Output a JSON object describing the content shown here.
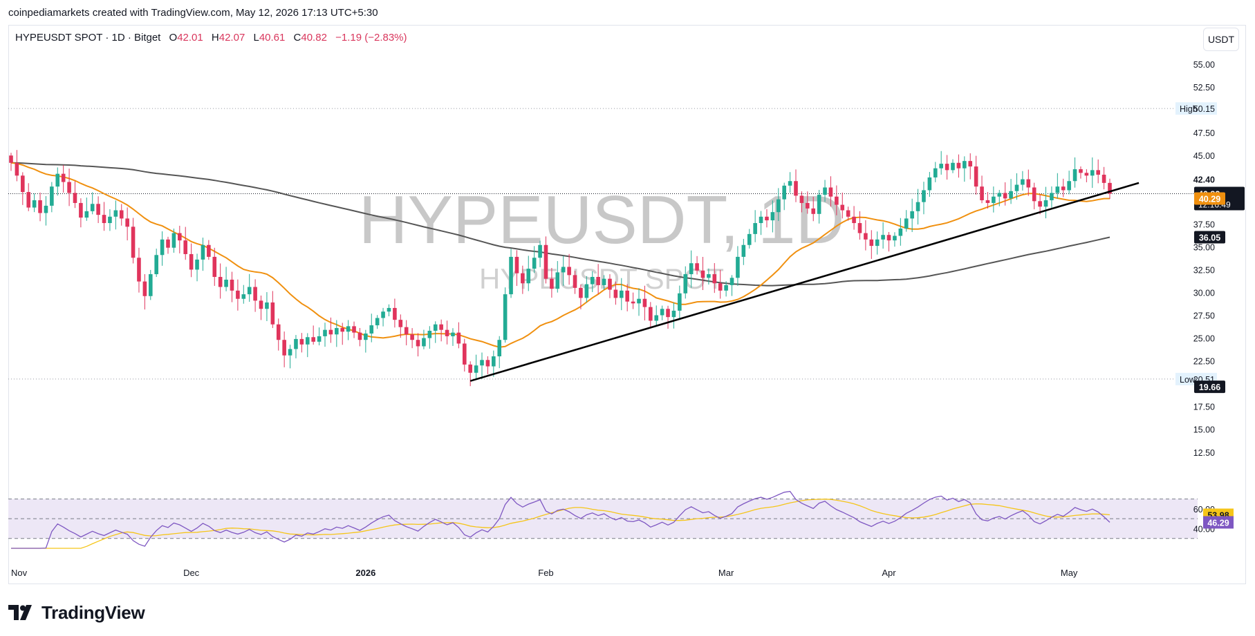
{
  "attribution": "coinpediamarkets created with TradingView.com, May 12, 2026 17:13 UTC+5:30",
  "legend": {
    "symbol": "HYPEUSDT SPOT · 1D · Bitget",
    "open_label": "O",
    "open": "42.01",
    "high_label": "H",
    "high": "42.07",
    "low_label": "L",
    "low": "40.61",
    "close_label": "C",
    "close": "40.82",
    "change": "−1.19 (−2.83%)"
  },
  "currency": "USDT",
  "watermark": {
    "main": "HYPEUSDT, 1D",
    "sub": "HYPEUSDT SPOT"
  },
  "branding": {
    "logo_text": "TradingView"
  },
  "colors": {
    "up": "#22ab94",
    "down": "#e0345c",
    "ma_fast": "#f0900f",
    "ma_slow": "#555555",
    "trendline": "#000000",
    "rsi": "#7e57c2",
    "rsi_ma": "#f5c518",
    "rsi_band": "#ede7f6"
  },
  "chart_data": [
    {
      "type": "candlestick",
      "y_axis": {
        "ticks": [
          55.0,
          52.5,
          47.5,
          45.0,
          37.5,
          35.0,
          32.5,
          30.0,
          27.5,
          25.0,
          22.5,
          17.5,
          15.0,
          12.5
        ],
        "ylim": [
          11.5,
          57.5
        ]
      },
      "x_axis": {
        "labels": [
          "Nov",
          "Dec",
          "2026",
          "Feb",
          "Mar",
          "Apr",
          "May"
        ]
      },
      "price_labels": {
        "high_tag": "High",
        "high_value": 50.15,
        "low_tag": "Low",
        "low_value": 20.51,
        "last_high": 42.4,
        "last_price": 40.82,
        "countdown": "12:16:49",
        "ma_fast_value": 40.29,
        "ma_slow_value": 36.05,
        "low_marker": 19.66
      },
      "close_series": [
        44.2,
        42.8,
        41.0,
        39.3,
        40.1,
        38.7,
        39.5,
        41.6,
        43.0,
        42.1,
        40.9,
        39.8,
        38.2,
        38.9,
        39.7,
        38.5,
        37.6,
        38.3,
        39.0,
        38.1,
        37.2,
        33.8,
        31.2,
        29.6,
        32.0,
        34.1,
        35.8,
        34.9,
        36.5,
        35.7,
        34.2,
        32.5,
        33.6,
        35.2,
        33.9,
        31.7,
        30.6,
        31.4,
        30.2,
        29.3,
        29.8,
        30.6,
        29.1,
        28.2,
        28.9,
        26.5,
        24.8,
        23.1,
        23.8,
        24.9,
        24.3,
        25.1,
        24.6,
        25.2,
        25.9,
        25.4,
        26.1,
        25.7,
        26.3,
        25.6,
        24.8,
        25.5,
        26.4,
        27.2,
        27.9,
        28.3,
        27.0,
        26.2,
        25.4,
        24.8,
        24.1,
        25.0,
        25.8,
        26.5,
        25.9,
        25.2,
        25.6,
        24.4,
        22.1,
        21.2,
        22.0,
        22.6,
        21.9,
        23.0,
        24.8,
        29.8,
        33.9,
        32.1,
        31.0,
        32.6,
        33.8,
        35.2,
        31.5,
        30.4,
        32.2,
        32.8,
        31.9,
        30.5,
        29.4,
        30.9,
        31.7,
        30.8,
        31.5,
        30.3,
        29.4,
        30.2,
        29.0,
        28.8,
        29.3,
        28.4,
        26.9,
        27.5,
        28.2,
        27.3,
        28.0,
        29.9,
        32.0,
        33.2,
        32.4,
        31.6,
        32.0,
        31.0,
        30.2,
        30.8,
        31.6,
        33.9,
        35.2,
        36.4,
        37.6,
        38.3,
        37.9,
        38.8,
        40.2,
        41.7,
        42.2,
        40.6,
        39.8,
        39.2,
        38.6,
        40.7,
        41.5,
        40.5,
        39.6,
        39.0,
        38.3,
        37.6,
        36.5,
        35.8,
        35.1,
        35.8,
        36.3,
        35.7,
        36.2,
        37.0,
        38.1,
        38.9,
        39.9,
        41.2,
        42.6,
        43.6,
        44.1,
        43.4,
        44.2,
        43.6,
        44.4,
        43.8,
        41.6,
        40.1,
        39.8,
        40.5,
        40.9,
        40.3,
        41.1,
        41.8,
        42.4,
        41.5,
        40.0,
        39.4,
        40.1,
        40.9,
        41.6,
        41.2,
        42.2,
        43.5,
        43.1,
        42.8,
        43.4,
        42.9,
        42.0,
        40.82
      ],
      "ma_fast_value_latest": 40.29,
      "ma_slow_value_latest": 36.05
    },
    {
      "type": "line",
      "name": "RSI",
      "y_axis": {
        "ticks": [
          60.0,
          40.0
        ]
      },
      "latest": {
        "rsi_ma": 53.98,
        "rsi": 46.29
      }
    }
  ]
}
